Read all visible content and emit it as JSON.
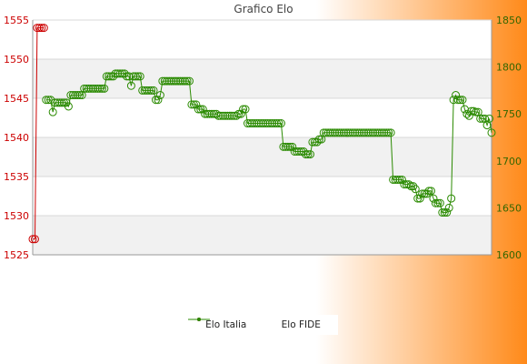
{
  "chart_data": {
    "type": "line",
    "title": "Grafico Elo",
    "y_left": {
      "min": 1525,
      "max": 1555,
      "ticks": [
        1525,
        1530,
        1535,
        1540,
        1545,
        1550,
        1555
      ],
      "color": "#cc0000"
    },
    "y_right": {
      "min": 1600,
      "max": 1850,
      "ticks": [
        1600,
        1650,
        1700,
        1750,
        1800,
        1850
      ],
      "color": "#336600"
    },
    "grid": true,
    "legend_position": "bottom-center",
    "series": [
      {
        "name": "Elo Italia",
        "axis": "left",
        "color": "#cc0000",
        "points": [
          {
            "x": 0,
            "y": 1527
          },
          {
            "x": 1,
            "y": 1527
          },
          {
            "x": 2,
            "y": 1554
          },
          {
            "x": 3,
            "y": 1554
          },
          {
            "x": 4,
            "y": 1554
          },
          {
            "x": 5,
            "y": 1554
          }
        ]
      },
      {
        "name": "Elo FIDE",
        "axis": "right",
        "color": "#2a8a00",
        "points": [
          {
            "x": 6,
            "y": 1765
          },
          {
            "x": 7,
            "y": 1765
          },
          {
            "x": 8,
            "y": 1765
          },
          {
            "x": 9,
            "y": 1752
          },
          {
            "x": 10,
            "y": 1762
          },
          {
            "x": 11,
            "y": 1762
          },
          {
            "x": 12,
            "y": 1762
          },
          {
            "x": 13,
            "y": 1762
          },
          {
            "x": 14,
            "y": 1762
          },
          {
            "x": 15,
            "y": 1762
          },
          {
            "x": 16,
            "y": 1758
          },
          {
            "x": 17,
            "y": 1770
          },
          {
            "x": 18,
            "y": 1770
          },
          {
            "x": 19,
            "y": 1770
          },
          {
            "x": 20,
            "y": 1770
          },
          {
            "x": 21,
            "y": 1770
          },
          {
            "x": 22,
            "y": 1770
          },
          {
            "x": 23,
            "y": 1777
          },
          {
            "x": 24,
            "y": 1777
          },
          {
            "x": 25,
            "y": 1777
          },
          {
            "x": 26,
            "y": 1777
          },
          {
            "x": 27,
            "y": 1777
          },
          {
            "x": 28,
            "y": 1777
          },
          {
            "x": 29,
            "y": 1777
          },
          {
            "x": 30,
            "y": 1777
          },
          {
            "x": 31,
            "y": 1777
          },
          {
            "x": 32,
            "y": 1777
          },
          {
            "x": 33,
            "y": 1790
          },
          {
            "x": 34,
            "y": 1790
          },
          {
            "x": 35,
            "y": 1790
          },
          {
            "x": 36,
            "y": 1790
          },
          {
            "x": 37,
            "y": 1793
          },
          {
            "x": 38,
            "y": 1793
          },
          {
            "x": 39,
            "y": 1793
          },
          {
            "x": 40,
            "y": 1793
          },
          {
            "x": 41,
            "y": 1793
          },
          {
            "x": 42,
            "y": 1790
          },
          {
            "x": 43,
            "y": 1790
          },
          {
            "x": 44,
            "y": 1780
          },
          {
            "x": 45,
            "y": 1790
          },
          {
            "x": 46,
            "y": 1790
          },
          {
            "x": 47,
            "y": 1790
          },
          {
            "x": 48,
            "y": 1790
          },
          {
            "x": 49,
            "y": 1775
          },
          {
            "x": 50,
            "y": 1775
          },
          {
            "x": 51,
            "y": 1775
          },
          {
            "x": 52,
            "y": 1775
          },
          {
            "x": 53,
            "y": 1775
          },
          {
            "x": 54,
            "y": 1775
          },
          {
            "x": 55,
            "y": 1765
          },
          {
            "x": 56,
            "y": 1765
          },
          {
            "x": 57,
            "y": 1770
          },
          {
            "x": 58,
            "y": 1785
          },
          {
            "x": 59,
            "y": 1785
          },
          {
            "x": 60,
            "y": 1785
          },
          {
            "x": 61,
            "y": 1785
          },
          {
            "x": 62,
            "y": 1785
          },
          {
            "x": 63,
            "y": 1785
          },
          {
            "x": 64,
            "y": 1785
          },
          {
            "x": 65,
            "y": 1785
          },
          {
            "x": 66,
            "y": 1785
          },
          {
            "x": 67,
            "y": 1785
          },
          {
            "x": 68,
            "y": 1785
          },
          {
            "x": 69,
            "y": 1785
          },
          {
            "x": 70,
            "y": 1785
          },
          {
            "x": 71,
            "y": 1760
          },
          {
            "x": 72,
            "y": 1760
          },
          {
            "x": 73,
            "y": 1760
          },
          {
            "x": 74,
            "y": 1755
          },
          {
            "x": 75,
            "y": 1755
          },
          {
            "x": 76,
            "y": 1755
          },
          {
            "x": 77,
            "y": 1750
          },
          {
            "x": 78,
            "y": 1750
          },
          {
            "x": 79,
            "y": 1750
          },
          {
            "x": 80,
            "y": 1750
          },
          {
            "x": 81,
            "y": 1750
          },
          {
            "x": 82,
            "y": 1750
          },
          {
            "x": 83,
            "y": 1748
          },
          {
            "x": 84,
            "y": 1748
          },
          {
            "x": 85,
            "y": 1748
          },
          {
            "x": 86,
            "y": 1748
          },
          {
            "x": 87,
            "y": 1748
          },
          {
            "x": 88,
            "y": 1748
          },
          {
            "x": 89,
            "y": 1748
          },
          {
            "x": 90,
            "y": 1748
          },
          {
            "x": 91,
            "y": 1748
          },
          {
            "x": 92,
            "y": 1750
          },
          {
            "x": 93,
            "y": 1750
          },
          {
            "x": 94,
            "y": 1755
          },
          {
            "x": 95,
            "y": 1755
          },
          {
            "x": 96,
            "y": 1740
          },
          {
            "x": 97,
            "y": 1740
          },
          {
            "x": 98,
            "y": 1740
          },
          {
            "x": 99,
            "y": 1740
          },
          {
            "x": 100,
            "y": 1740
          },
          {
            "x": 101,
            "y": 1740
          },
          {
            "x": 102,
            "y": 1740
          },
          {
            "x": 103,
            "y": 1740
          },
          {
            "x": 104,
            "y": 1740
          },
          {
            "x": 105,
            "y": 1740
          },
          {
            "x": 106,
            "y": 1740
          },
          {
            "x": 107,
            "y": 1740
          },
          {
            "x": 108,
            "y": 1740
          },
          {
            "x": 109,
            "y": 1740
          },
          {
            "x": 110,
            "y": 1740
          },
          {
            "x": 111,
            "y": 1740
          },
          {
            "x": 112,
            "y": 1715
          },
          {
            "x": 113,
            "y": 1715
          },
          {
            "x": 114,
            "y": 1715
          },
          {
            "x": 115,
            "y": 1715
          },
          {
            "x": 116,
            "y": 1715
          },
          {
            "x": 117,
            "y": 1710
          },
          {
            "x": 118,
            "y": 1710
          },
          {
            "x": 119,
            "y": 1710
          },
          {
            "x": 120,
            "y": 1710
          },
          {
            "x": 121,
            "y": 1710
          },
          {
            "x": 122,
            "y": 1707
          },
          {
            "x": 123,
            "y": 1707
          },
          {
            "x": 124,
            "y": 1707
          },
          {
            "x": 125,
            "y": 1720
          },
          {
            "x": 126,
            "y": 1720
          },
          {
            "x": 127,
            "y": 1720
          },
          {
            "x": 128,
            "y": 1723
          },
          {
            "x": 129,
            "y": 1723
          },
          {
            "x": 130,
            "y": 1730
          },
          {
            "x": 131,
            "y": 1730
          },
          {
            "x": 132,
            "y": 1730
          },
          {
            "x": 133,
            "y": 1730
          },
          {
            "x": 134,
            "y": 1730
          },
          {
            "x": 135,
            "y": 1730
          },
          {
            "x": 136,
            "y": 1730
          },
          {
            "x": 137,
            "y": 1730
          },
          {
            "x": 138,
            "y": 1730
          },
          {
            "x": 139,
            "y": 1730
          },
          {
            "x": 140,
            "y": 1730
          },
          {
            "x": 141,
            "y": 1730
          },
          {
            "x": 142,
            "y": 1730
          },
          {
            "x": 143,
            "y": 1730
          },
          {
            "x": 144,
            "y": 1730
          },
          {
            "x": 145,
            "y": 1730
          },
          {
            "x": 146,
            "y": 1730
          },
          {
            "x": 147,
            "y": 1730
          },
          {
            "x": 148,
            "y": 1730
          },
          {
            "x": 149,
            "y": 1730
          },
          {
            "x": 150,
            "y": 1730
          },
          {
            "x": 151,
            "y": 1730
          },
          {
            "x": 152,
            "y": 1730
          },
          {
            "x": 153,
            "y": 1730
          },
          {
            "x": 154,
            "y": 1730
          },
          {
            "x": 155,
            "y": 1730
          },
          {
            "x": 156,
            "y": 1730
          },
          {
            "x": 157,
            "y": 1730
          },
          {
            "x": 158,
            "y": 1730
          },
          {
            "x": 159,
            "y": 1730
          },
          {
            "x": 160,
            "y": 1730
          },
          {
            "x": 161,
            "y": 1680
          },
          {
            "x": 162,
            "y": 1680
          },
          {
            "x": 163,
            "y": 1680
          },
          {
            "x": 164,
            "y": 1680
          },
          {
            "x": 165,
            "y": 1680
          },
          {
            "x": 166,
            "y": 1675
          },
          {
            "x": 167,
            "y": 1675
          },
          {
            "x": 168,
            "y": 1675
          },
          {
            "x": 169,
            "y": 1673
          },
          {
            "x": 170,
            "y": 1673
          },
          {
            "x": 171,
            "y": 1670
          },
          {
            "x": 172,
            "y": 1660
          },
          {
            "x": 173,
            "y": 1660
          },
          {
            "x": 174,
            "y": 1665
          },
          {
            "x": 175,
            "y": 1665
          },
          {
            "x": 176,
            "y": 1665
          },
          {
            "x": 177,
            "y": 1668
          },
          {
            "x": 178,
            "y": 1668
          },
          {
            "x": 179,
            "y": 1660
          },
          {
            "x": 180,
            "y": 1655
          },
          {
            "x": 181,
            "y": 1655
          },
          {
            "x": 182,
            "y": 1655
          },
          {
            "x": 183,
            "y": 1645
          },
          {
            "x": 184,
            "y": 1645
          },
          {
            "x": 185,
            "y": 1645
          },
          {
            "x": 186,
            "y": 1650
          },
          {
            "x": 187,
            "y": 1660
          },
          {
            "x": 188,
            "y": 1765
          },
          {
            "x": 189,
            "y": 1770
          },
          {
            "x": 190,
            "y": 1765
          },
          {
            "x": 191,
            "y": 1765
          },
          {
            "x": 192,
            "y": 1765
          },
          {
            "x": 193,
            "y": 1755
          },
          {
            "x": 194,
            "y": 1750
          },
          {
            "x": 195,
            "y": 1748
          },
          {
            "x": 196,
            "y": 1753
          },
          {
            "x": 197,
            "y": 1753
          },
          {
            "x": 198,
            "y": 1752
          },
          {
            "x": 199,
            "y": 1752
          },
          {
            "x": 200,
            "y": 1745
          },
          {
            "x": 201,
            "y": 1745
          },
          {
            "x": 202,
            "y": 1745
          },
          {
            "x": 203,
            "y": 1738
          },
          {
            "x": 204,
            "y": 1745
          },
          {
            "x": 205,
            "y": 1730
          }
        ]
      }
    ]
  },
  "legend": {
    "italia_label": "Elo Italia",
    "fide_label": "Elo FIDE"
  }
}
